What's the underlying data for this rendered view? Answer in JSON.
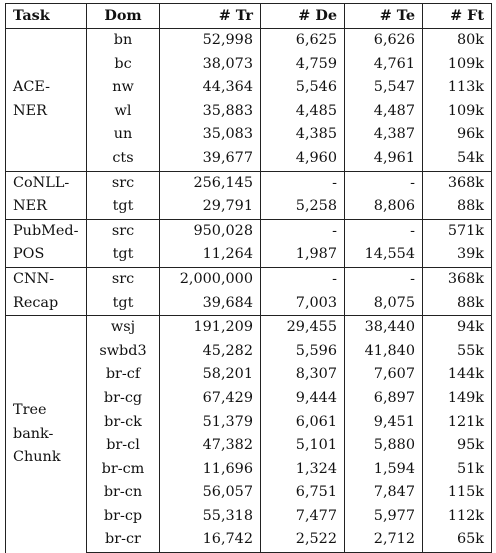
{
  "table": {
    "headers": [
      "Task",
      "Dom",
      "# Tr",
      "# De",
      "# Te",
      "# Ft"
    ],
    "groups": [
      {
        "task": "ACE-\nNER",
        "rows": [
          {
            "dom": "bn",
            "tr": "52,998",
            "de": "6,625",
            "te": "6,626",
            "ft": "80k"
          },
          {
            "dom": "bc",
            "tr": "38,073",
            "de": "4,759",
            "te": "4,761",
            "ft": "109k"
          },
          {
            "dom": "nw",
            "tr": "44,364",
            "de": "5,546",
            "te": "5,547",
            "ft": "113k"
          },
          {
            "dom": "wl",
            "tr": "35,883",
            "de": "4,485",
            "te": "4,487",
            "ft": "109k"
          },
          {
            "dom": "un",
            "tr": "35,083",
            "de": "4,385",
            "te": "4,387",
            "ft": "96k"
          },
          {
            "dom": "cts",
            "tr": "39,677",
            "de": "4,960",
            "te": "4,961",
            "ft": "54k"
          }
        ]
      },
      {
        "task": "CoNLL-\nNER",
        "rows": [
          {
            "dom": "src",
            "tr": "256,145",
            "de": "-",
            "te": "-",
            "ft": "368k"
          },
          {
            "dom": "tgt",
            "tr": "29,791",
            "de": "5,258",
            "te": "8,806",
            "ft": "88k"
          }
        ]
      },
      {
        "task": "PubMed-\nPOS",
        "rows": [
          {
            "dom": "src",
            "tr": "950,028",
            "de": "-",
            "te": "-",
            "ft": "571k"
          },
          {
            "dom": "tgt",
            "tr": "11,264",
            "de": "1,987",
            "te": "14,554",
            "ft": "39k"
          }
        ]
      },
      {
        "task": "CNN-\nRecap",
        "rows": [
          {
            "dom": "src",
            "tr": "2,000,000",
            "de": "-",
            "te": "-",
            "ft": "368k"
          },
          {
            "dom": "tgt",
            "tr": "39,684",
            "de": "7,003",
            "te": "8,075",
            "ft": "88k"
          }
        ]
      },
      {
        "task": "Tree\nbank-\nChunk",
        "rows": [
          {
            "dom": "wsj",
            "tr": "191,209",
            "de": "29,455",
            "te": "38,440",
            "ft": "94k"
          },
          {
            "dom": "swbd3",
            "tr": "45,282",
            "de": "5,596",
            "te": "41,840",
            "ft": "55k"
          },
          {
            "dom": "br-cf",
            "tr": "58,201",
            "de": "8,307",
            "te": "7,607",
            "ft": "144k"
          },
          {
            "dom": "br-cg",
            "tr": "67,429",
            "de": "9,444",
            "te": "6,897",
            "ft": "149k"
          },
          {
            "dom": "br-ck",
            "tr": "51,379",
            "de": "6,061",
            "te": "9,451",
            "ft": "121k"
          },
          {
            "dom": "br-cl",
            "tr": "47,382",
            "de": "5,101",
            "te": "5,880",
            "ft": "95k"
          },
          {
            "dom": "br-cm",
            "tr": "11,696",
            "de": "1,324",
            "te": "1,594",
            "ft": "51k"
          },
          {
            "dom": "br-cn",
            "tr": "56,057",
            "de": "6,751",
            "te": "7,847",
            "ft": "115k"
          },
          {
            "dom": "br-cp",
            "tr": "55,318",
            "de": "7,477",
            "te": "5,977",
            "ft": "112k"
          },
          {
            "dom": "br-cr",
            "tr": "16,742",
            "de": "2,522",
            "te": "2,712",
            "ft": "65k"
          }
        ]
      }
    ]
  }
}
